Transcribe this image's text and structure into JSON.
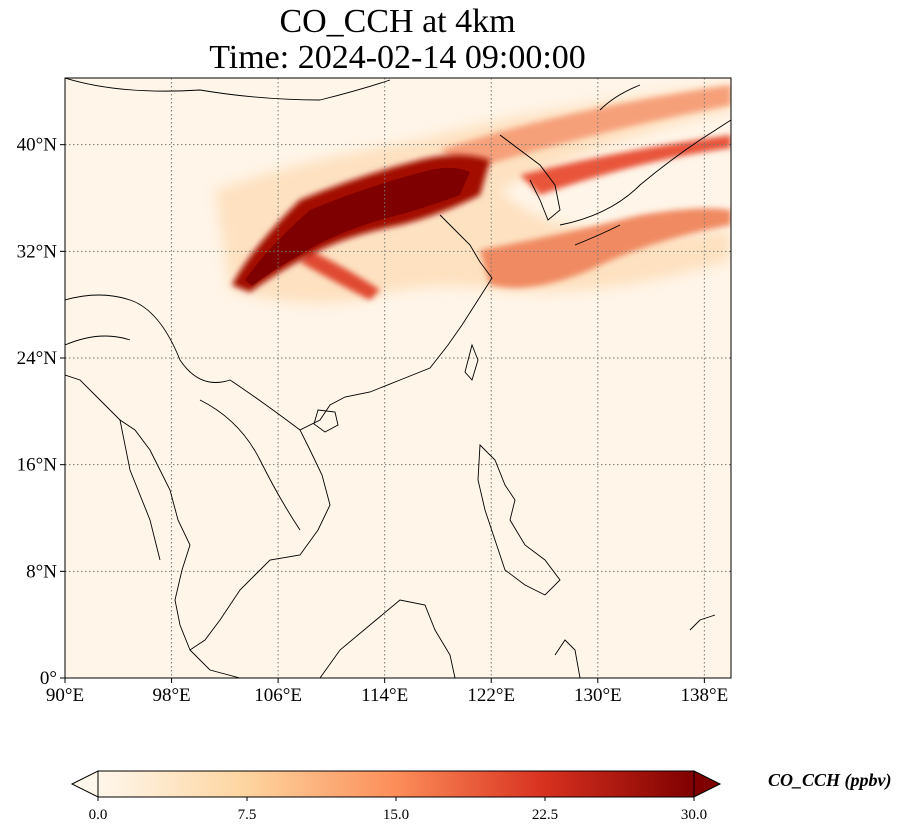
{
  "title_line1": "CO_CCH at 4km",
  "title_line2": "Time: 2024-02-14 09:00:00",
  "map": {
    "lon_range": [
      90,
      140
    ],
    "lat_range": [
      0,
      45
    ],
    "x_ticks": [
      {
        "value": 90,
        "label": "90°E"
      },
      {
        "value": 98,
        "label": "98°E"
      },
      {
        "value": 106,
        "label": "106°E"
      },
      {
        "value": 114,
        "label": "114°E"
      },
      {
        "value": 122,
        "label": "122°E"
      },
      {
        "value": 130,
        "label": "130°E"
      },
      {
        "value": 138,
        "label": "138°E"
      }
    ],
    "y_ticks": [
      {
        "value": 0,
        "label": "0°"
      },
      {
        "value": 8,
        "label": "8°N"
      },
      {
        "value": 16,
        "label": "16°N"
      },
      {
        "value": 24,
        "label": "24°N"
      },
      {
        "value": 32,
        "label": "32°N"
      },
      {
        "value": 40,
        "label": "40°N"
      }
    ],
    "gridlines": true,
    "gridline_style": "dotted"
  },
  "colorbar": {
    "label": "CO_CCH (ppbv)",
    "min": 0,
    "max": 30,
    "colormap": "OrRd",
    "extend": "both",
    "ticks": [
      {
        "value": 0,
        "label": "0.0"
      },
      {
        "value": 7.5,
        "label": "7.5"
      },
      {
        "value": 15,
        "label": "15.0"
      },
      {
        "value": 22.5,
        "label": "22.5"
      },
      {
        "value": 30,
        "label": "30.0"
      }
    ]
  },
  "colors": {
    "background_field": "#fff5e8",
    "max_concentration": "#7f0000",
    "coastline": "#000000",
    "gridline": "#777777"
  }
}
